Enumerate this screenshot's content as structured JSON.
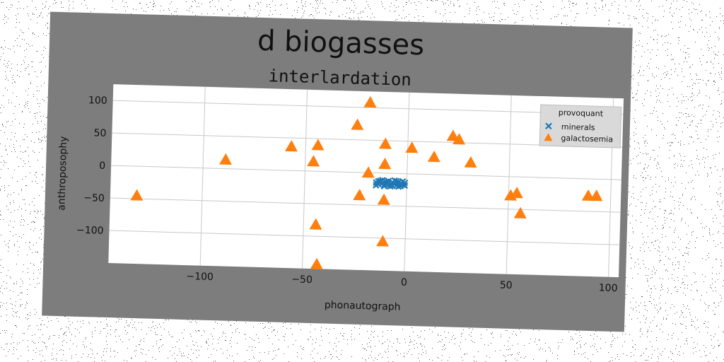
{
  "chart_data": {
    "type": "scatter",
    "title": "d biogasses",
    "subtitle": "interlardation",
    "xlabel": "phonautograph",
    "ylabel": "anthroposophy",
    "xlim": [
      -145,
      105
    ],
    "ylim": [
      -150,
      125
    ],
    "xticks": [
      -100,
      -50,
      0,
      50,
      100
    ],
    "yticks": [
      -100,
      -50,
      0,
      50,
      100
    ],
    "grid": true,
    "legend": {
      "title": "provoquant",
      "placement": "top-right"
    },
    "series": [
      {
        "name": "minerals",
        "marker": "x",
        "color": "#1f77b4",
        "points": [
          [
            -15,
            -15
          ],
          [
            -14,
            -17
          ],
          [
            -13,
            -14
          ],
          [
            -12,
            -16
          ],
          [
            -11,
            -18
          ],
          [
            -10,
            -13
          ],
          [
            -9,
            -15
          ],
          [
            -8,
            -17
          ],
          [
            -7,
            -14
          ],
          [
            -6,
            -16
          ],
          [
            -5,
            -18
          ],
          [
            -4,
            -13
          ],
          [
            -3,
            -15
          ],
          [
            -2,
            -17
          ],
          [
            -1,
            -14
          ],
          [
            -15,
            -19
          ],
          [
            -13,
            -12
          ],
          [
            -11,
            -20
          ],
          [
            -9,
            -12
          ],
          [
            -7,
            -19
          ],
          [
            -5,
            -12
          ],
          [
            -3,
            -19
          ],
          [
            -1,
            -18
          ],
          [
            -12,
            -11
          ],
          [
            -8,
            -20
          ],
          [
            -4,
            -20
          ],
          [
            -6,
            -11
          ],
          [
            -2,
            -12
          ],
          [
            -10,
            -17
          ],
          [
            -14,
            -13
          ]
        ]
      },
      {
        "name": "galactosemia",
        "marker": "^",
        "color": "#ff7f0e",
        "points": [
          [
            -132,
            -45
          ],
          [
            -89,
            14
          ],
          [
            -57,
            37
          ],
          [
            -46,
            15
          ],
          [
            -44,
            40
          ],
          [
            -44,
            -82
          ],
          [
            -43,
            -143
          ],
          [
            -25,
            73
          ],
          [
            -23,
            -35
          ],
          [
            -19,
            108
          ],
          [
            -19,
            0
          ],
          [
            -11,
            45
          ],
          [
            -11,
            14
          ],
          [
            -11,
            -41
          ],
          [
            -11,
            -105
          ],
          [
            2,
            40
          ],
          [
            13,
            27
          ],
          [
            22,
            60
          ],
          [
            25,
            55
          ],
          [
            31,
            20
          ],
          [
            51,
            -29
          ],
          [
            54,
            -25
          ],
          [
            56,
            -56
          ],
          [
            89,
            -26
          ],
          [
            93,
            -26
          ]
        ]
      }
    ]
  }
}
